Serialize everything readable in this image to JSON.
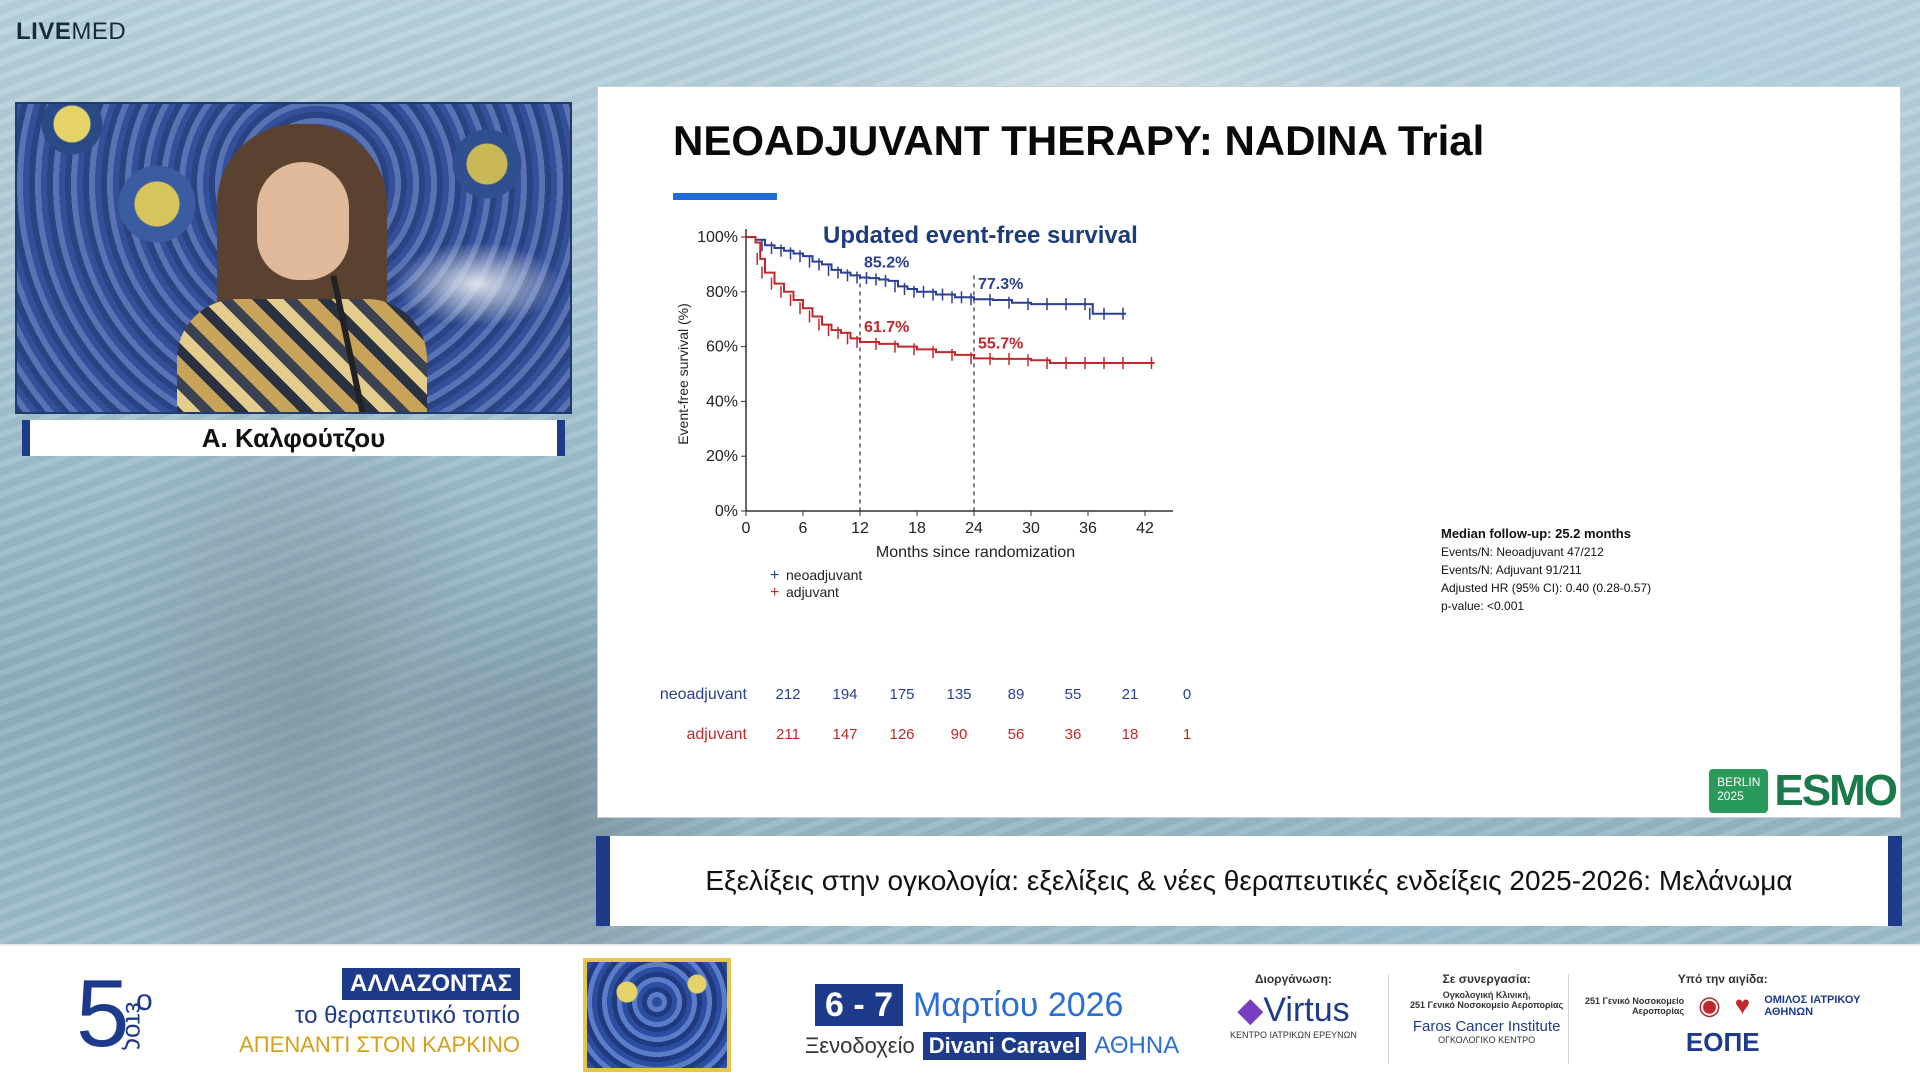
{
  "brand": {
    "part1": "LIVE",
    "part2": "MED"
  },
  "speaker": {
    "name": "Α. Καλφούτζου"
  },
  "slide": {
    "title": "NEOADJUVANT THERAPY: NADINA Trial",
    "logo": {
      "line1": "BERLIN",
      "line2": "2025",
      "word": "ESMO"
    }
  },
  "chart_data": {
    "type": "line",
    "title": "Updated event-free survival",
    "xlabel": "Months since randomization",
    "ylabel": "Event-free survival (%)",
    "xlim": [
      0,
      42
    ],
    "ylim": [
      0,
      100
    ],
    "xticks": [
      "0",
      "6",
      "12",
      "18",
      "24",
      "30",
      "36",
      "42"
    ],
    "yticks": [
      "0%",
      "20%",
      "40%",
      "60%",
      "80%",
      "100%"
    ],
    "series": [
      {
        "name": "neoadjuvant",
        "color": "#2b3f8f",
        "x": [
          0,
          1,
          2,
          3,
          4,
          5,
          6,
          7,
          8,
          9,
          10,
          11,
          12,
          13,
          14,
          15,
          16,
          17,
          18,
          19,
          20,
          21,
          22,
          23,
          24,
          26,
          28,
          30,
          32,
          34,
          36,
          36.5,
          38,
          40
        ],
        "y": [
          100,
          99,
          97,
          96,
          95,
          94,
          93,
          91,
          90,
          88,
          87,
          86,
          85.2,
          85,
          84.5,
          84,
          82,
          81,
          80,
          80,
          79,
          79,
          78,
          78,
          77.3,
          77,
          76,
          75.5,
          75.5,
          75.5,
          75.5,
          72,
          72,
          72
        ]
      },
      {
        "name": "adjuvant",
        "color": "#c0282d",
        "x": [
          0,
          1,
          1.5,
          2,
          3,
          4,
          5,
          6,
          7,
          8,
          9,
          10,
          11,
          12,
          14,
          16,
          18,
          20,
          22,
          24,
          26,
          28,
          30,
          32,
          34,
          36,
          38,
          40,
          43
        ],
        "y": [
          100,
          98,
          92,
          87,
          83,
          80,
          77,
          74,
          71,
          68,
          66,
          65,
          63,
          61.7,
          61,
          60,
          59,
          58,
          57,
          55.7,
          55.5,
          55.5,
          55,
          54,
          54,
          54,
          54,
          54,
          54
        ]
      }
    ],
    "annotations": [
      {
        "text": "85.2%",
        "x": 12,
        "y": 85.2,
        "series": "neoadjuvant"
      },
      {
        "text": "77.3%",
        "x": 24,
        "y": 77.3,
        "series": "neoadjuvant"
      },
      {
        "text": "61.7%",
        "x": 12,
        "y": 61.7,
        "series": "adjuvant"
      },
      {
        "text": "55.7%",
        "x": 24,
        "y": 55.7,
        "series": "adjuvant"
      }
    ],
    "reference_lines_x": [
      12,
      24
    ],
    "stats": [
      "Median follow-up: 25.2 months",
      "Events/N: Neoadjuvant 47/212",
      "Events/N: Adjuvant 91/211",
      "Adjusted HR (95% CI): 0.40 (0.28-0.57)",
      "p-value: <0.001"
    ],
    "risk_table": {
      "rows": [
        {
          "label": "neoadjuvant",
          "values": [
            "212",
            "194",
            "175",
            "135",
            "89",
            "55",
            "21",
            "0"
          ]
        },
        {
          "label": "adjuvant",
          "values": [
            "211",
            "147",
            "126",
            "90",
            "56",
            "36",
            "18",
            "1"
          ]
        }
      ]
    }
  },
  "caption": "Εξελίξεις στην ογκολογία: εξελίξεις & νέες θεραπευτικές ενδείξεις 2025-2026: Μελάνωμα",
  "footer": {
    "year_number": "5",
    "year_sup": "ο",
    "year_word": "έτος",
    "slogan_line1": "ΑΛΛΑΖΟΝΤΑΣ",
    "slogan_line2": "το θεραπευτικό τοπίο",
    "slogan_line3": "ΑΠΕΝΑΝΤΙ ΣΤΟΝ ΚΑΡΚΙΝΟ",
    "dates": "6 - 7",
    "month_year": "Μαρτίου 2026",
    "venue_prefix": "Ξενοδοχείο",
    "venue_name": "Divani Caravel",
    "venue_city": "ΑΘΗΝΑ",
    "organizer_label": "Διοργάνωση:",
    "organizer_name": "Virtus",
    "organizer_sub": "ΚΕΝΤΡΟ ΙΑΤΡΙΚΩΝ ΕΡΕΥΝΩΝ",
    "partner_label": "Σε συνεργασία:",
    "partner_line1": "Ογκολογική Κλινική,",
    "partner_line2": "251 Γενικό Νοσοκομείο Αεροπορίας",
    "partner_name": "Faros Cancer Institute",
    "partner_sub": "ΟΓΚΟΛΟΓΙΚΟ ΚΕΝΤΡΟ",
    "auspices_label": "Υπό την αιγίδα:",
    "auspices_1a": "251 Γενικό Νοσοκομείο",
    "auspices_1b": "Αεροπορίας",
    "auspices_2a": "ΟΜΙΛΟΣ ΙΑΤΡΙΚΟΥ",
    "auspices_2b": "ΑΘΗΝΩΝ",
    "auspices_3": "ΕΟΠΕ"
  }
}
